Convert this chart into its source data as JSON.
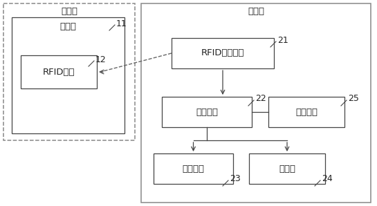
{
  "title_left": "校准块",
  "title_right": "电子秤",
  "label_weight": "重物块",
  "label_rfid_chip": "RFID芯片",
  "label_rfid_rw": "RFID读写设备",
  "label_process": "处理单元",
  "label_comm": "通讯模块",
  "label_storage": "存储设备",
  "label_display": "显示屏",
  "num_11": "11",
  "num_12": "12",
  "num_21": "21",
  "num_22": "22",
  "num_23": "23",
  "num_24": "24",
  "num_25": "25",
  "bg_color": "#ffffff",
  "box_edge_color": "#444444",
  "outer_edge_color": "#888888",
  "font_color": "#222222",
  "num_color": "#222222",
  "font_size": 9.5,
  "num_font_size": 9,
  "line_color": "#444444"
}
